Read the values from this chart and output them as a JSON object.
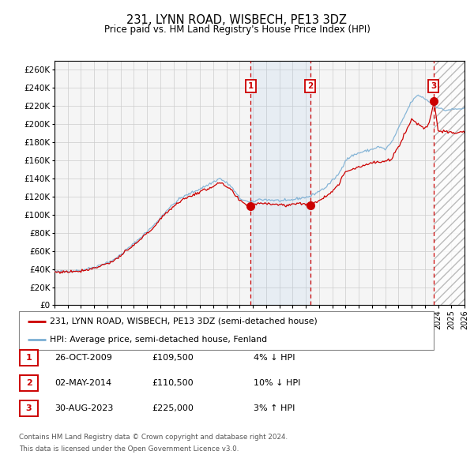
{
  "title": "231, LYNN ROAD, WISBECH, PE13 3DZ",
  "subtitle": "Price paid vs. HM Land Registry's House Price Index (HPI)",
  "ylim": [
    0,
    270000
  ],
  "yticks": [
    0,
    20000,
    40000,
    60000,
    80000,
    100000,
    120000,
    140000,
    160000,
    180000,
    200000,
    220000,
    240000,
    260000
  ],
  "hpi_color": "#7bafd4",
  "price_color": "#cc0000",
  "bg_color": "#ffffff",
  "chart_bg": "#f5f5f5",
  "grid_color": "#cccccc",
  "sale_dates": [
    "2009-10-26",
    "2014-05-02",
    "2023-08-30"
  ],
  "sale_prices": [
    109500,
    110500,
    225000
  ],
  "sale_labels": [
    "1",
    "2",
    "3"
  ],
  "legend_red_label": "231, LYNN ROAD, WISBECH, PE13 3DZ (semi-detached house)",
  "legend_blue_label": "HPI: Average price, semi-detached house, Fenland",
  "table_entries": [
    {
      "label": "1",
      "date": "26-OCT-2009",
      "price": "£109,500",
      "pct": "4%",
      "dir": "↓",
      "text": "HPI"
    },
    {
      "label": "2",
      "date": "02-MAY-2014",
      "price": "£110,500",
      "pct": "10%",
      "dir": "↓",
      "text": "HPI"
    },
    {
      "label": "3",
      "date": "30-AUG-2023",
      "price": "£225,000",
      "pct": "3%",
      "dir": "↑",
      "text": "HPI"
    }
  ],
  "footnote1": "Contains HM Land Registry data © Crown copyright and database right 2024.",
  "footnote2": "This data is licensed under the Open Government Licence v3.0.",
  "xstart": 1995,
  "xend": 2026,
  "hpi_anchors_t": [
    1995.0,
    1996.0,
    1997.0,
    1998.0,
    1999.5,
    2001.0,
    2002.5,
    2003.5,
    2004.5,
    2005.5,
    2006.5,
    2007.5,
    2008.3,
    2009.0,
    2009.8,
    2010.5,
    2011.5,
    2012.5,
    2013.5,
    2014.3,
    2015.5,
    2016.5,
    2017.0,
    2017.5,
    2018.0,
    2018.5,
    2019.0,
    2019.5,
    2020.0,
    2020.5,
    2021.0,
    2021.5,
    2022.0,
    2022.5,
    2023.0,
    2023.3,
    2023.7,
    2024.0,
    2024.5,
    2025.0,
    2026.0
  ],
  "hpi_anchors_v": [
    37000,
    37500,
    38500,
    42000,
    50000,
    68000,
    88000,
    105000,
    118000,
    125000,
    132000,
    140000,
    132000,
    118000,
    113000,
    117000,
    116000,
    115000,
    118000,
    120000,
    130000,
    145000,
    160000,
    165000,
    168000,
    170000,
    172000,
    175000,
    172000,
    180000,
    195000,
    210000,
    225000,
    232000,
    228000,
    225000,
    222000,
    218000,
    215000,
    216000,
    217000
  ],
  "price_anchors_t": [
    1995.0,
    1996.0,
    1997.0,
    1998.0,
    1999.5,
    2001.0,
    2002.5,
    2003.5,
    2004.5,
    2005.5,
    2006.5,
    2007.5,
    2008.3,
    2009.0,
    2009.8,
    2010.5,
    2011.5,
    2012.5,
    2013.5,
    2014.3,
    2015.5,
    2016.5,
    2017.0,
    2017.5,
    2018.0,
    2018.5,
    2019.0,
    2019.5,
    2020.0,
    2020.5,
    2021.0,
    2021.5,
    2022.0,
    2022.5,
    2023.0,
    2023.3,
    2023.7,
    2024.0,
    2025.0,
    2026.0
  ],
  "price_anchors_v": [
    36500,
    37000,
    38000,
    41000,
    49000,
    66000,
    86000,
    103000,
    115000,
    122000,
    128000,
    135000,
    128000,
    115000,
    109500,
    113000,
    112000,
    110000,
    113000,
    110500,
    120000,
    133000,
    148000,
    150000,
    153000,
    155000,
    157000,
    158000,
    158000,
    162000,
    175000,
    190000,
    205000,
    200000,
    195000,
    200000,
    225000,
    193000,
    190000,
    191000
  ]
}
